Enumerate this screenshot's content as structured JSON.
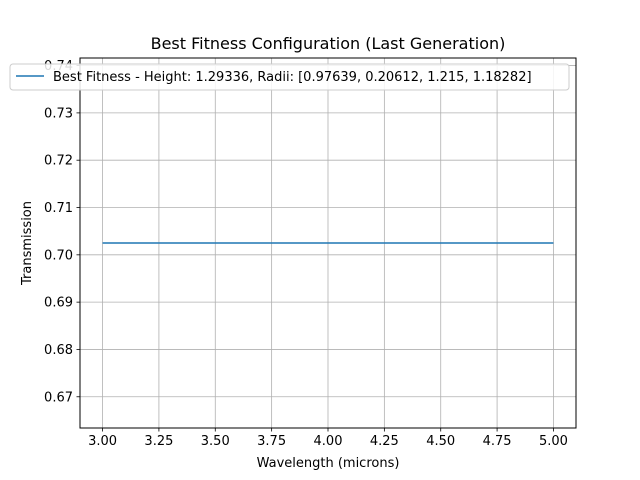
{
  "chart_data": {
    "type": "line",
    "title": "Best Fitness Configuration (Last Generation)",
    "xlabel": "Wavelength (microns)",
    "ylabel": "Transmission",
    "xlim": [
      2.9,
      5.1
    ],
    "ylim": [
      0.6634,
      0.7416
    ],
    "xticks": [
      3.0,
      3.25,
      3.5,
      3.75,
      4.0,
      4.25,
      4.5,
      4.75,
      5.0
    ],
    "xtick_labels": [
      "3.00",
      "3.25",
      "3.50",
      "3.75",
      "4.00",
      "4.25",
      "4.50",
      "4.75",
      "5.00"
    ],
    "yticks": [
      0.67,
      0.68,
      0.69,
      0.7,
      0.71,
      0.72,
      0.73,
      0.74
    ],
    "ytick_labels": [
      "0.67",
      "0.68",
      "0.69",
      "0.70",
      "0.71",
      "0.72",
      "0.73",
      "0.74"
    ],
    "grid": true,
    "legend_position": "top",
    "series": [
      {
        "name": "Best Fitness - Height: 1.29336, Radii: [0.97639, 0.20612, 1.215, 1.18282]",
        "color": "#1f77b4",
        "x": [
          3.0,
          5.0
        ],
        "y": [
          0.7025,
          0.7025
        ]
      }
    ]
  }
}
